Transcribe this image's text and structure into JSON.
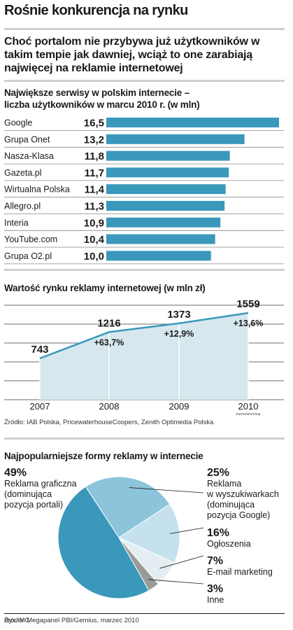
{
  "title": "Rośnie konkurencja na rynku",
  "subtitle": "Choć portalom nie przybywa już użytkowników w takim tempie jak dawniej, wciąż to one zarabiają najwięcej na reklamie internetowej",
  "colors": {
    "bar": "#3a98bb",
    "line": "#3a98bb",
    "area": "#d6e8ee",
    "pie_main": "#3a98bb",
    "pie_light": "#8cc4db",
    "pie_lighter": "#c4e1ed",
    "pie_pale": "#e4eef2",
    "pie_gray": "#9a9a9a"
  },
  "sections": {
    "users": {
      "heading": "Największe serwisy w polskim internecie – liczba użytkowników w marcu 2010 r. (w mln)"
    },
    "market": {
      "heading": "Wartość rynku reklamy internetowej (w mln zł)",
      "forecast_note": "prognoza",
      "source": "Źródło: IAB Polska, PricewaterhouseCoopers, Zenith Optimedia Polska"
    },
    "forms": {
      "heading": "Najpopularniejsze formy reklamy w internecie",
      "source": "Źródło: Megapanel PBI/Gemius, marzec 2010",
      "credit": "Rys. MC"
    }
  },
  "chart_data": [
    {
      "type": "bar",
      "orientation": "horizontal",
      "categories": [
        "Google",
        "Grupa Onet",
        "Nasza-Klasa",
        "Gazeta.pl",
        "Wirtualna Polska",
        "Allegro.pl",
        "Interia",
        "YouTube.com",
        "Grupa O2.pl"
      ],
      "values": [
        16.5,
        13.2,
        11.8,
        11.7,
        11.4,
        11.3,
        10.9,
        10.4,
        10.0
      ],
      "value_labels": [
        "16,5",
        "13,2",
        "11,8",
        "11,7",
        "11,4",
        "11,3",
        "10,9",
        "10,4",
        "10,0"
      ]
    },
    {
      "type": "area",
      "x": [
        "2007",
        "2008",
        "2009",
        "2010"
      ],
      "values": [
        743,
        1216,
        1373,
        1559
      ],
      "value_labels": [
        "743",
        "1216",
        "1373",
        "1559"
      ],
      "growth_labels": [
        "",
        "+63,7%",
        "+12,9%",
        "+13,6%"
      ]
    },
    {
      "type": "pie",
      "slices": [
        {
          "pct": "49%",
          "value": 49,
          "label": "Reklama graficzna (dominująca pozycja portali)"
        },
        {
          "pct": "25%",
          "value": 25,
          "label": "Reklama w wyszukiwarkach (dominująca pozycja Google)"
        },
        {
          "pct": "16%",
          "value": 16,
          "label": "Ogłoszenia"
        },
        {
          "pct": "7%",
          "value": 7,
          "label": "E-mail marketing"
        },
        {
          "pct": "3%",
          "value": 3,
          "label": "Inne"
        }
      ]
    }
  ]
}
